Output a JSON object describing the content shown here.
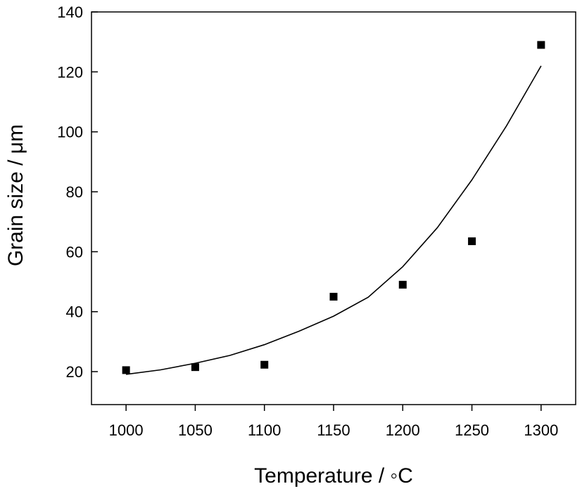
{
  "chart_data": {
    "type": "scatter",
    "title": "",
    "xlabel": "Temperature / ◦C",
    "ylabel": "Grain size / μm",
    "xlim": [
      975,
      1325
    ],
    "ylim": [
      9,
      140
    ],
    "xticks": [
      1000,
      1050,
      1100,
      1150,
      1200,
      1250,
      1300
    ],
    "yticks": [
      20,
      40,
      60,
      80,
      100,
      120,
      140
    ],
    "grid": false,
    "legend": "none",
    "series": [
      {
        "kind": "points",
        "marker": "square",
        "x": [
          1000,
          1050,
          1100,
          1150,
          1200,
          1250,
          1300
        ],
        "y": [
          20.5,
          21.5,
          22.3,
          45.0,
          49.0,
          63.5,
          129.0
        ]
      },
      {
        "kind": "fit-line",
        "x": [
          1000,
          1025,
          1050,
          1075,
          1100,
          1125,
          1150,
          1175,
          1200,
          1225,
          1250,
          1275,
          1300
        ],
        "y": [
          19.1,
          20.6,
          22.8,
          25.4,
          29.0,
          33.5,
          38.5,
          44.8,
          55.0,
          68.0,
          84.0,
          102.0,
          122.0
        ]
      }
    ]
  }
}
